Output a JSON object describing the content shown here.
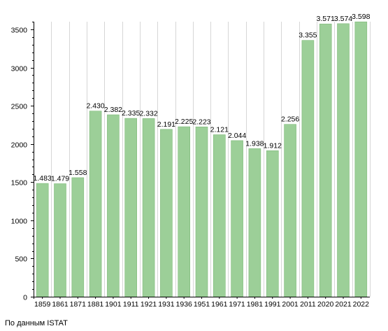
{
  "chart_data": {
    "type": "bar",
    "categories": [
      "1859",
      "1861",
      "1871",
      "1881",
      "1901",
      "1911",
      "1921",
      "1931",
      "1936",
      "1951",
      "1961",
      "1971",
      "1981",
      "1991",
      "2001",
      "2011",
      "2020",
      "2021",
      "2022"
    ],
    "values": [
      1483,
      1479,
      1558,
      2430,
      2382,
      2335,
      2332,
      2191,
      2225,
      2223,
      2121,
      2044,
      1938,
      1912,
      2256,
      3355,
      3571,
      3574,
      3598
    ],
    "data_labels": [
      "1.483",
      "1.479",
      "1.558",
      "2.430",
      "2.382",
      "2.335",
      "2.332",
      "2.191",
      "2.225",
      "2.223",
      "2.121",
      "2.044",
      "1.938",
      "1.912",
      "2.256",
      "3.355",
      "3.571",
      "3.574",
      "3.598"
    ],
    "y_ticks": [
      0,
      500,
      1000,
      1500,
      2000,
      2500,
      3000,
      3500
    ],
    "ylim": [
      0,
      3600
    ],
    "grid": "vertical",
    "bar_color": "#9ccf98",
    "bar_edge_color": "#7fba7a",
    "grid_color": "#d6d6d6",
    "title": "",
    "xlabel": "",
    "ylabel": ""
  },
  "footer": {
    "source": "По данным  ISTAT"
  }
}
